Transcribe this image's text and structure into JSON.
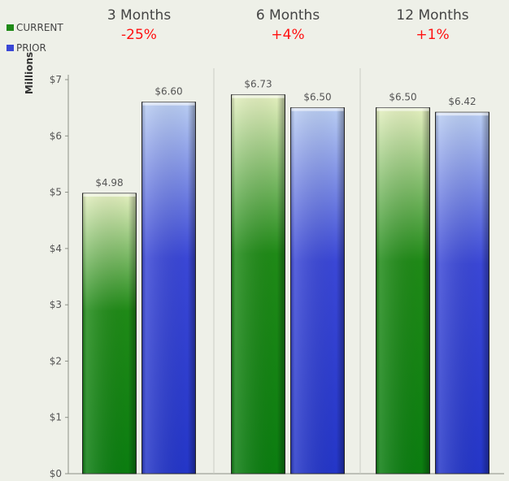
{
  "chart_data": {
    "type": "bar",
    "ylabel": "Millions",
    "ylim": [
      0,
      7
    ],
    "y_ticks": [
      "$0",
      "$1",
      "$2",
      "$3",
      "$4",
      "$5",
      "$6",
      "$7"
    ],
    "grid": false,
    "legend_position": "top-left",
    "groups": [
      {
        "title": "3 Months",
        "change": "-25%"
      },
      {
        "title": "6 Months",
        "change": "+4%"
      },
      {
        "title": "12 Months",
        "change": "+1%"
      }
    ],
    "series": [
      {
        "name": "CURRENT",
        "values": [
          4.98,
          6.73,
          6.5
        ],
        "labels": [
          "$4.98",
          "$6.73",
          "$6.50"
        ]
      },
      {
        "name": "PRIOR",
        "values": [
          6.6,
          6.5,
          6.42
        ],
        "labels": [
          "$6.60",
          "$6.50",
          "$6.42"
        ]
      }
    ]
  },
  "colors": {
    "current_top": "#e4efbf",
    "current_mid": "#1f8a17",
    "current_bottom": "#0b7d10",
    "prior_top": "#b9cdf2",
    "prior_mid": "#3a47d6",
    "prior_bottom": "#2436c8",
    "change_text": "#ff1010",
    "divider": "#c9cbc3"
  }
}
